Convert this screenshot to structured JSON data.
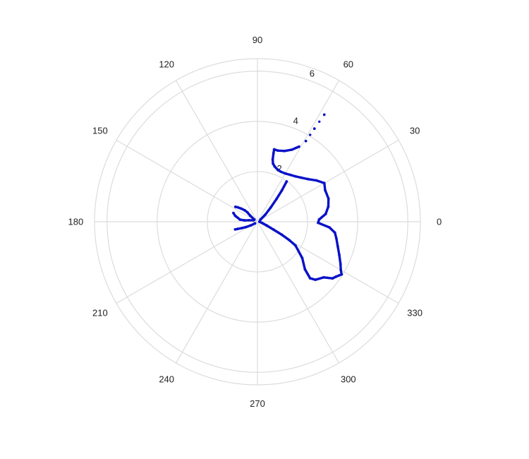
{
  "chart_data": {
    "type": "scatter",
    "projection": "polar",
    "angle_unit": "degrees",
    "angular_ticks": [
      "0",
      "30",
      "60",
      "90",
      "120",
      "150",
      "180",
      "210",
      "240",
      "270",
      "300",
      "330"
    ],
    "radial_ticks": [
      "2",
      "4",
      "6"
    ],
    "rlim": [
      0,
      6.5
    ],
    "grid": true,
    "marker_color": "#0a12c8",
    "series": [
      {
        "points": [
          {
            "theta": 58.0,
            "r": 5.03
          },
          {
            "theta": 58.5,
            "r": 4.35
          },
          {
            "theta": 59.0,
            "r": 3.75
          },
          {
            "theta": 61.0,
            "r": 3.42
          },
          {
            "theta": 64.5,
            "r": 3.18
          },
          {
            "theta": 69.0,
            "r": 3.02
          },
          {
            "theta": 74.0,
            "r": 2.95
          },
          {
            "theta": 77.0,
            "r": 2.96
          },
          {
            "theta": 76.8,
            "r": 2.8
          },
          {
            "theta": 76.2,
            "r": 2.55
          },
          {
            "theta": 75.0,
            "r": 2.4
          },
          {
            "theta": 72.5,
            "r": 2.3
          },
          {
            "theta": 69.0,
            "r": 2.23
          },
          {
            "theta": 65.0,
            "r": 2.2
          },
          {
            "theta": 60.0,
            "r": 2.22
          },
          {
            "theta": 55.0,
            "r": 2.28
          },
          {
            "theta": 50.0,
            "r": 2.36
          },
          {
            "theta": 45.0,
            "r": 2.48
          },
          {
            "theta": 40.0,
            "r": 2.64
          },
          {
            "theta": 35.0,
            "r": 2.87
          },
          {
            "theta": 30.0,
            "r": 3.08
          },
          {
            "theta": 25.0,
            "r": 2.98
          },
          {
            "theta": 18.0,
            "r": 2.98
          },
          {
            "theta": 12.0,
            "r": 2.89
          },
          {
            "theta": 6.5,
            "r": 2.74
          },
          {
            "theta": 2.0,
            "r": 2.46
          },
          {
            "theta": -1.0,
            "r": 2.42
          },
          {
            "theta": -4.5,
            "r": 2.88
          },
          {
            "theta": -8.0,
            "r": 3.12
          },
          {
            "theta": -12.0,
            "r": 3.22
          },
          {
            "theta": -17.0,
            "r": 3.35
          },
          {
            "theta": -22.0,
            "r": 3.52
          },
          {
            "theta": -27.0,
            "r": 3.72
          },
          {
            "theta": -30.0,
            "r": 3.84
          },
          {
            "theta": -32.0,
            "r": 3.96
          },
          {
            "theta": -35.0,
            "r": 3.82
          },
          {
            "theta": -37.0,
            "r": 3.75
          },
          {
            "theta": -40.0,
            "r": 3.45
          },
          {
            "theta": -45.0,
            "r": 3.27
          },
          {
            "theta": -47.0,
            "r": 3.08
          },
          {
            "theta": -45.0,
            "r": 2.68
          },
          {
            "theta": -39.0,
            "r": 2.3
          },
          {
            "theta": -32.0,
            "r": 1.79
          },
          {
            "theta": -30.0,
            "r": 1.47
          },
          {
            "theta": -28.0,
            "r": 1.1
          },
          {
            "theta": -26.0,
            "r": 0.72
          },
          {
            "theta": -22.0,
            "r": 0.4
          },
          {
            "theta": -15.0,
            "r": 0.2
          },
          {
            "theta": 0.0,
            "r": 0.08
          },
          {
            "theta": 35.0,
            "r": 0.15
          },
          {
            "theta": 42.0,
            "r": 0.42
          },
          {
            "theta": 47.0,
            "r": 0.78
          },
          {
            "theta": 50.0,
            "r": 1.18
          },
          {
            "theta": 52.0,
            "r": 1.58
          },
          {
            "theta": 54.0,
            "r": 1.98
          }
        ]
      },
      {
        "points": [
          {
            "theta": 160.0,
            "r": 0.17
          },
          {
            "theta": 170.0,
            "r": 0.34
          },
          {
            "theta": 174.0,
            "r": 0.52
          },
          {
            "theta": 173.0,
            "r": 0.7
          },
          {
            "theta": 165.0,
            "r": 0.92
          },
          {
            "theta": 160.0,
            "r": 1.02
          }
        ]
      },
      {
        "points": [
          {
            "theta": 145.0,
            "r": 0.15
          },
          {
            "theta": 140.0,
            "r": 0.38
          },
          {
            "theta": 137.0,
            "r": 0.55
          },
          {
            "theta": 138.0,
            "r": 0.68
          },
          {
            "theta": 141.0,
            "r": 0.83
          },
          {
            "theta": 144.0,
            "r": 0.98
          },
          {
            "theta": 146.0,
            "r": 1.06
          }
        ]
      },
      {
        "points": [
          {
            "theta": 213.0,
            "r": 0.12
          },
          {
            "theta": 209.0,
            "r": 0.3
          },
          {
            "theta": 205.0,
            "r": 0.5
          },
          {
            "theta": 202.0,
            "r": 0.68
          },
          {
            "theta": 200.0,
            "r": 0.84
          },
          {
            "theta": 199.0,
            "r": 0.94
          }
        ]
      }
    ]
  }
}
